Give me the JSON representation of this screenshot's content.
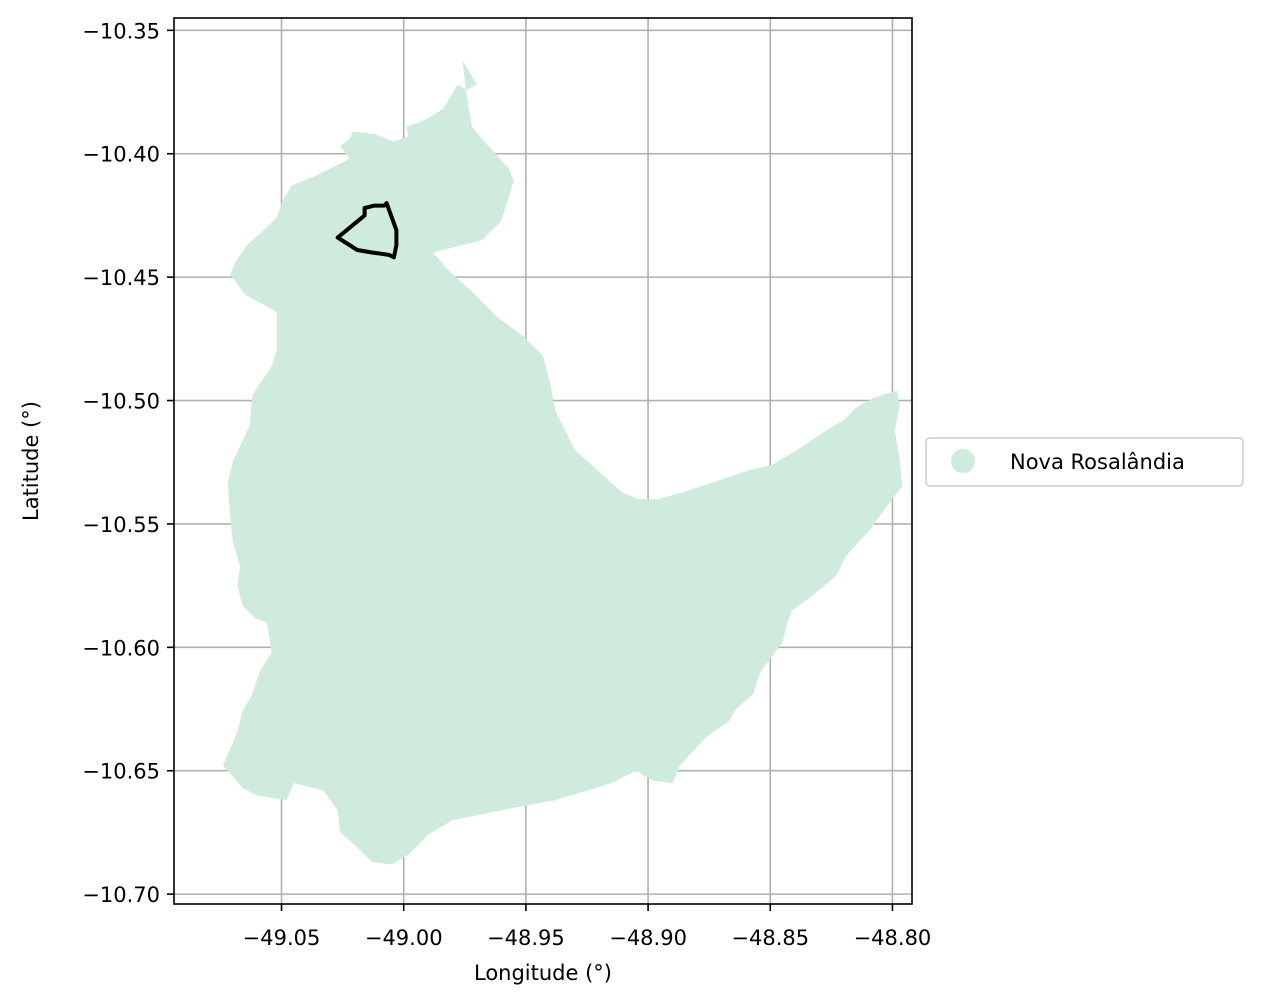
{
  "map": {
    "xlabel": "Longitude (°)",
    "ylabel": "Latitude (°)",
    "xlim": [
      -49.094,
      -48.792
    ],
    "ylim": [
      -10.704,
      -10.345
    ],
    "x_ticks": [
      -49.05,
      -49.0,
      -48.95,
      -48.9,
      -48.85,
      -48.8
    ],
    "x_tick_labels": [
      "−49.05",
      "−49.00",
      "−48.95",
      "−48.90",
      "−48.85",
      "−48.80"
    ],
    "y_ticks": [
      -10.35,
      -10.4,
      -10.45,
      -10.5,
      -10.55,
      -10.6,
      -10.65,
      -10.7
    ],
    "y_tick_labels": [
      "−10.35",
      "−10.40",
      "−10.45",
      "−10.50",
      "−10.55",
      "−10.60",
      "−10.65",
      "−10.70"
    ],
    "grid": true,
    "legend": {
      "placement": "right-outside",
      "entries": [
        {
          "label": "Nova Rosalândia",
          "color": "#cfebdd",
          "marker": "circle"
        }
      ]
    },
    "region": {
      "name": "Nova Rosalândia",
      "fill": "#cfebdd",
      "outline": [
        [
          -48.976,
          -10.362
        ],
        [
          -48.97,
          -10.372
        ],
        [
          -48.974,
          -10.374
        ],
        [
          -48.978,
          -10.372
        ],
        [
          -48.984,
          -10.382
        ],
        [
          -48.989,
          -10.385
        ],
        [
          -48.993,
          -10.387
        ],
        [
          -48.999,
          -10.389
        ],
        [
          -48.998,
          -10.393
        ],
        [
          -49.004,
          -10.395
        ],
        [
          -49.012,
          -10.392
        ],
        [
          -49.021,
          -10.391
        ],
        [
          -49.022,
          -10.394
        ],
        [
          -49.026,
          -10.397
        ],
        [
          -49.022,
          -10.402
        ],
        [
          -49.036,
          -10.409
        ],
        [
          -49.046,
          -10.413
        ],
        [
          -49.05,
          -10.42
        ],
        [
          -49.052,
          -10.426
        ],
        [
          -49.064,
          -10.437
        ],
        [
          -49.069,
          -10.444
        ],
        [
          -49.071,
          -10.449
        ],
        [
          -49.065,
          -10.457
        ],
        [
          -49.052,
          -10.464
        ],
        [
          -49.052,
          -10.48
        ],
        [
          -49.054,
          -10.486
        ],
        [
          -49.062,
          -10.498
        ],
        [
          -49.063,
          -10.51
        ],
        [
          -49.07,
          -10.525
        ],
        [
          -49.072,
          -10.533
        ],
        [
          -49.071,
          -10.547
        ],
        [
          -49.07,
          -10.557
        ],
        [
          -49.067,
          -10.567
        ],
        [
          -49.068,
          -10.575
        ],
        [
          -49.066,
          -10.583
        ],
        [
          -49.061,
          -10.588
        ],
        [
          -49.056,
          -10.59
        ],
        [
          -49.054,
          -10.602
        ],
        [
          -49.059,
          -10.61
        ],
        [
          -49.062,
          -10.619
        ],
        [
          -49.066,
          -10.626
        ],
        [
          -49.068,
          -10.634
        ],
        [
          -49.074,
          -10.648
        ],
        [
          -49.071,
          -10.651
        ],
        [
          -49.066,
          -10.657
        ],
        [
          -49.06,
          -10.66
        ],
        [
          -49.048,
          -10.662
        ],
        [
          -49.045,
          -10.655
        ],
        [
          -49.033,
          -10.658
        ],
        [
          -49.027,
          -10.666
        ],
        [
          -49.026,
          -10.675
        ],
        [
          -49.019,
          -10.681
        ],
        [
          -49.013,
          -10.687
        ],
        [
          -49.005,
          -10.688
        ],
        [
          -48.998,
          -10.684
        ],
        [
          -48.99,
          -10.676
        ],
        [
          -48.98,
          -10.67
        ],
        [
          -48.97,
          -10.668
        ],
        [
          -48.955,
          -10.665
        ],
        [
          -48.938,
          -10.662
        ],
        [
          -48.915,
          -10.655
        ],
        [
          -48.905,
          -10.65
        ],
        [
          -48.898,
          -10.654
        ],
        [
          -48.89,
          -10.655
        ],
        [
          -48.887,
          -10.648
        ],
        [
          -48.876,
          -10.636
        ],
        [
          -48.867,
          -10.63
        ],
        [
          -48.864,
          -10.625
        ],
        [
          -48.857,
          -10.619
        ],
        [
          -48.854,
          -10.61
        ],
        [
          -48.845,
          -10.598
        ],
        [
          -48.843,
          -10.59
        ],
        [
          -48.841,
          -10.585
        ],
        [
          -48.834,
          -10.58
        ],
        [
          -48.823,
          -10.571
        ],
        [
          -48.819,
          -10.563
        ],
        [
          -48.809,
          -10.552
        ],
        [
          -48.801,
          -10.541
        ],
        [
          -48.796,
          -10.535
        ],
        [
          -48.797,
          -10.524
        ],
        [
          -48.799,
          -10.512
        ],
        [
          -48.797,
          -10.502
        ],
        [
          -48.798,
          -10.496
        ],
        [
          -48.802,
          -10.497
        ],
        [
          -48.808,
          -10.499
        ],
        [
          -48.815,
          -10.503
        ],
        [
          -48.82,
          -10.508
        ],
        [
          -48.827,
          -10.512
        ],
        [
          -48.839,
          -10.52
        ],
        [
          -48.849,
          -10.526
        ],
        [
          -48.858,
          -10.528
        ],
        [
          -48.867,
          -10.531
        ],
        [
          -48.876,
          -10.534
        ],
        [
          -48.885,
          -10.537
        ],
        [
          -48.896,
          -10.54
        ],
        [
          -48.904,
          -10.54
        ],
        [
          -48.911,
          -10.537
        ],
        [
          -48.921,
          -10.528
        ],
        [
          -48.93,
          -10.52
        ],
        [
          -48.938,
          -10.504
        ],
        [
          -48.94,
          -10.493
        ],
        [
          -48.943,
          -10.482
        ],
        [
          -48.951,
          -10.474
        ],
        [
          -48.962,
          -10.466
        ],
        [
          -48.972,
          -10.456
        ],
        [
          -48.982,
          -10.447
        ],
        [
          -48.988,
          -10.44
        ],
        [
          -48.968,
          -10.435
        ],
        [
          -48.96,
          -10.427
        ],
        [
          -48.955,
          -10.411
        ],
        [
          -48.957,
          -10.406
        ],
        [
          -48.968,
          -10.394
        ],
        [
          -48.972,
          -10.389
        ],
        [
          -48.974,
          -10.378
        ],
        [
          -48.976,
          -10.362
        ]
      ]
    },
    "highlight": {
      "stroke": "#000000",
      "outline": [
        [
          -49.027,
          -10.434
        ],
        [
          -49.016,
          -10.425
        ],
        [
          -49.016,
          -10.422
        ],
        [
          -49.012,
          -10.421
        ],
        [
          -49.008,
          -10.421
        ],
        [
          -49.007,
          -10.42
        ],
        [
          -49.003,
          -10.431
        ],
        [
          -49.003,
          -10.437
        ],
        [
          -49.004,
          -10.442
        ],
        [
          -49.006,
          -10.441
        ],
        [
          -49.013,
          -10.44
        ],
        [
          -49.019,
          -10.439
        ],
        [
          -49.027,
          -10.434
        ]
      ]
    }
  }
}
